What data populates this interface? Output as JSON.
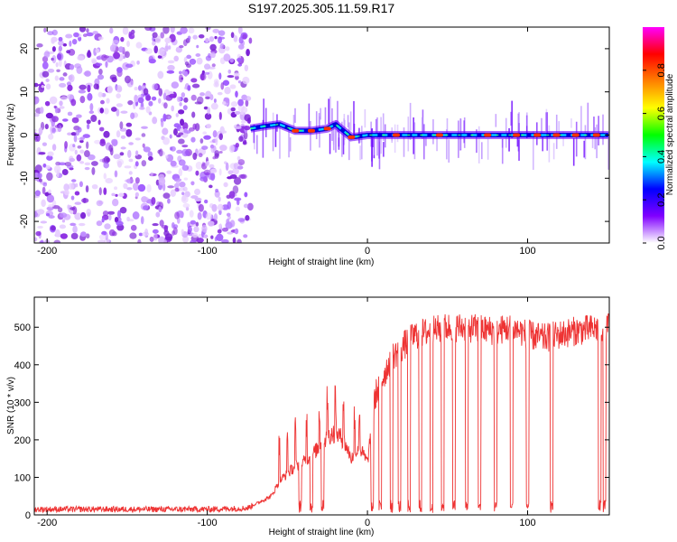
{
  "title": "S197.2025.305.11.59.R17",
  "chart_data": [
    {
      "type": "heatmap",
      "name": "spectrogram",
      "xlabel": "Height of straight line (km)",
      "ylabel": "Frequency (Hz)",
      "xlim": [
        -208,
        151
      ],
      "ylim": [
        -25,
        25
      ],
      "xticks": [
        -200,
        -100,
        0,
        100
      ],
      "xtick_labels": [
        "-200",
        "-100",
        "0",
        "100"
      ],
      "yticks": [
        -20,
        -10,
        0,
        10,
        20
      ],
      "ytick_labels": [
        "-20",
        "-10",
        "0",
        "10",
        "20"
      ],
      "noise_region_x": [
        -208,
        -73
      ],
      "signal_start_x": -73,
      "carrier_track": {
        "x": [
          -73,
          -65,
          -55,
          -45,
          -35,
          -25,
          -20,
          -15,
          -10,
          0,
          10,
          30,
          60,
          100,
          151
        ],
        "y": [
          1.5,
          2.0,
          2.5,
          1.0,
          1.0,
          1.5,
          2.5,
          1.0,
          -0.5,
          0.0,
          0.0,
          0.0,
          0.0,
          0.0,
          0.0
        ]
      },
      "peak_x": [
        -45,
        -35,
        -25,
        -10,
        18,
        45,
        75,
        93,
        106,
        118,
        130,
        143
      ],
      "colorbar": {
        "label": "Normalized spectral amplitude",
        "ticks": [
          0.0,
          0.2,
          0.4,
          0.6,
          0.8
        ],
        "tick_labels": [
          "0.0",
          "0.2",
          "0.4",
          "0.6",
          "0.8"
        ],
        "range": [
          0,
          1
        ],
        "colors": [
          "#ffffff",
          "#8000ff",
          "#0000ff",
          "#00ffff",
          "#00ff00",
          "#ffff00",
          "#ff8000",
          "#ff0000",
          "#ff00ff"
        ]
      }
    },
    {
      "type": "line",
      "name": "snr",
      "xlabel": "Height of straight line (km)",
      "ylabel": "SNR (10 * v/v)",
      "xlim": [
        -208,
        151
      ],
      "ylim": [
        0,
        580
      ],
      "xticks": [
        -200,
        -100,
        0,
        100
      ],
      "xtick_labels": [
        "-200",
        "-100",
        "0",
        "100"
      ],
      "yticks": [
        0,
        100,
        200,
        300,
        400,
        500
      ],
      "ytick_labels": [
        "0",
        "100",
        "200",
        "300",
        "400",
        "500"
      ],
      "color": "#ee3333",
      "baseline": {
        "x": [
          -208,
          -150,
          -100,
          -75,
          -60,
          -55,
          -50,
          -45,
          -40,
          -35,
          -30,
          -25,
          -20,
          -15,
          -10,
          -5,
          0,
          5,
          10,
          15,
          20,
          25,
          30,
          40,
          50,
          60,
          70,
          80,
          90,
          100,
          110,
          120,
          130,
          140,
          151
        ],
        "y": [
          15,
          15,
          15,
          18,
          50,
          90,
          110,
          130,
          140,
          160,
          180,
          210,
          220,
          200,
          150,
          180,
          140,
          320,
          370,
          420,
          440,
          460,
          480,
          490,
          500,
          500,
          495,
          490,
          500,
          480,
          470,
          480,
          490,
          495,
          500
        ]
      },
      "dropouts_x": [
        -42,
        -35,
        -28,
        3,
        8,
        15,
        20,
        26,
        33,
        40,
        47,
        54,
        62,
        70,
        80,
        90,
        100,
        115,
        145,
        148
      ],
      "spikes_x": [
        -55,
        -50,
        -45,
        -38,
        -30,
        -25,
        -20,
        -15,
        -8,
        -5
      ]
    }
  ]
}
